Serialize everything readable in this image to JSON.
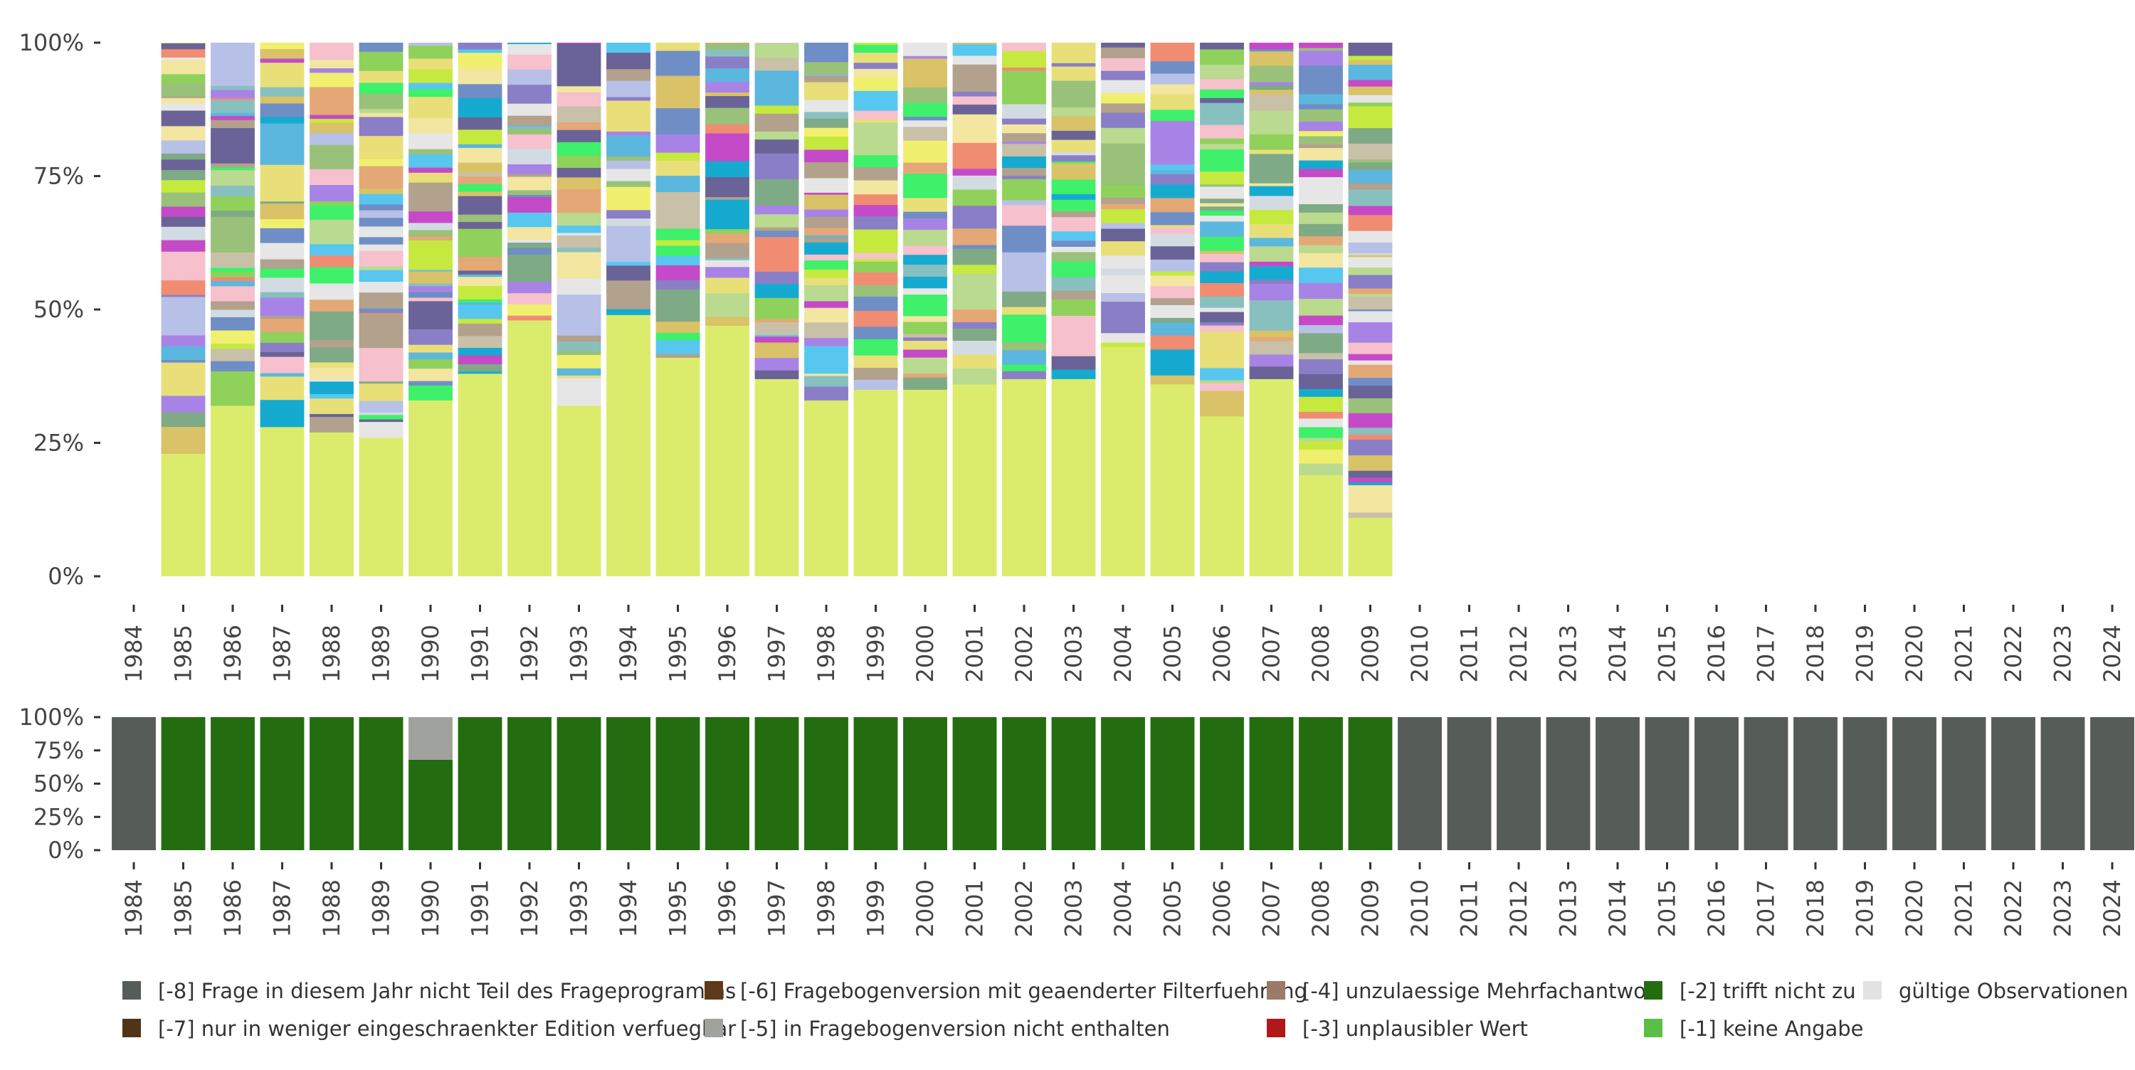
{
  "chart_data": [
    {
      "type": "bar",
      "stacked": true,
      "subtype": "stacked-100-percent",
      "title": "",
      "xlabel": "",
      "ylabel": "",
      "ylim": [
        0,
        100
      ],
      "y_ticks": [
        "0%",
        "25%",
        "50%",
        "75%",
        "100%"
      ],
      "categories": [
        "1984",
        "1985",
        "1986",
        "1987",
        "1988",
        "1989",
        "1990",
        "1991",
        "1992",
        "1993",
        "1994",
        "1995",
        "1996",
        "1997",
        "1998",
        "1999",
        "2000",
        "2001",
        "2002",
        "2003",
        "2004",
        "2005",
        "2006",
        "2007",
        "2008",
        "2009",
        "2010",
        "2011",
        "2012",
        "2013",
        "2014",
        "2015",
        "2016",
        "2017",
        "2018",
        "2019",
        "2020",
        "2021",
        "2022",
        "2023",
        "2024"
      ],
      "base_category_share": [
        null,
        23,
        32,
        28,
        27,
        26,
        33,
        38,
        48,
        32,
        49,
        41,
        47,
        37,
        33,
        35,
        35,
        36,
        37,
        37,
        43,
        36,
        30,
        37,
        19,
        11,
        null,
        null,
        null,
        null,
        null,
        null,
        null,
        null,
        null,
        null,
        null,
        null,
        null,
        null,
        null
      ],
      "base_color": "#dbec6c",
      "note": "Each bar is split into many thin colored answer categories stacking to 100%; the large lower block is the most frequent category. Years 1984 and 2010-2024 have no bars."
    },
    {
      "type": "bar",
      "stacked": true,
      "subtype": "stacked-100-percent",
      "title": "",
      "xlabel": "",
      "ylabel": "",
      "ylim": [
        0,
        100
      ],
      "y_ticks": [
        "0%",
        "25%",
        "50%",
        "75%",
        "100%"
      ],
      "categories": [
        "1984",
        "1985",
        "1986",
        "1987",
        "1988",
        "1989",
        "1990",
        "1991",
        "1992",
        "1993",
        "1994",
        "1995",
        "1996",
        "1997",
        "1998",
        "1999",
        "2000",
        "2001",
        "2002",
        "2003",
        "2004",
        "2005",
        "2006",
        "2007",
        "2008",
        "2009",
        "2010",
        "2011",
        "2012",
        "2013",
        "2014",
        "2015",
        "2016",
        "2017",
        "2018",
        "2019",
        "2020",
        "2021",
        "2022",
        "2023",
        "2024"
      ],
      "series": [
        {
          "name": "[-8] Frage in diesem Jahr nicht Teil des Frageprogramms",
          "color": "#565c57",
          "values": [
            100,
            0,
            0,
            0,
            0,
            0,
            0,
            0,
            0,
            0,
            0,
            0,
            0,
            0,
            0,
            0,
            0,
            0,
            0,
            0,
            0,
            0,
            0,
            0,
            0,
            0,
            100,
            100,
            100,
            100,
            100,
            100,
            100,
            100,
            100,
            100,
            100,
            100,
            100,
            100,
            100
          ]
        },
        {
          "name": "[-2] trifft nicht zu",
          "color": "#236d10",
          "values": [
            0,
            100,
            100,
            100,
            100,
            100,
            68,
            100,
            100,
            100,
            100,
            100,
            100,
            100,
            100,
            100,
            100,
            100,
            100,
            100,
            100,
            100,
            100,
            100,
            100,
            100,
            0,
            0,
            0,
            0,
            0,
            0,
            0,
            0,
            0,
            0,
            0,
            0,
            0,
            0,
            0
          ]
        },
        {
          "name": "[-5] in Fragebogenversion nicht enthalten",
          "color": "#9fa29d",
          "values": [
            0,
            0,
            0,
            0,
            0,
            0,
            32,
            0,
            0,
            0,
            0,
            0,
            0,
            0,
            0,
            0,
            0,
            0,
            0,
            0,
            0,
            0,
            0,
            0,
            0,
            0,
            0,
            0,
            0,
            0,
            0,
            0,
            0,
            0,
            0,
            0,
            0,
            0,
            0,
            0,
            0
          ]
        }
      ]
    }
  ],
  "legend": {
    "items": [
      {
        "label": "[-8] Frage in diesem Jahr nicht Teil des Frageprogramms",
        "color": "#565c57"
      },
      {
        "label": "[-7] nur in weniger eingeschraenkter Edition verfuegbar",
        "color": "#4f3418"
      },
      {
        "label": "[-6] Fragebogenversion mit geaenderter Filterfuehrung",
        "color": "#5e3a18"
      },
      {
        "label": "[-5] in Fragebogenversion nicht enthalten",
        "color": "#9fa29d"
      },
      {
        "label": "[-4] unzulaessige Mehrfachantwort",
        "color": "#9a7b68"
      },
      {
        "label": "[-3] unplausibler Wert",
        "color": "#b0181c"
      },
      {
        "label": "[-2] trifft nicht zu",
        "color": "#236d10"
      },
      {
        "label": "[-1] keine Angabe",
        "color": "#5bbf47"
      },
      {
        "label": "gültige Observationen",
        "color": "#e2e3e1"
      }
    ]
  }
}
